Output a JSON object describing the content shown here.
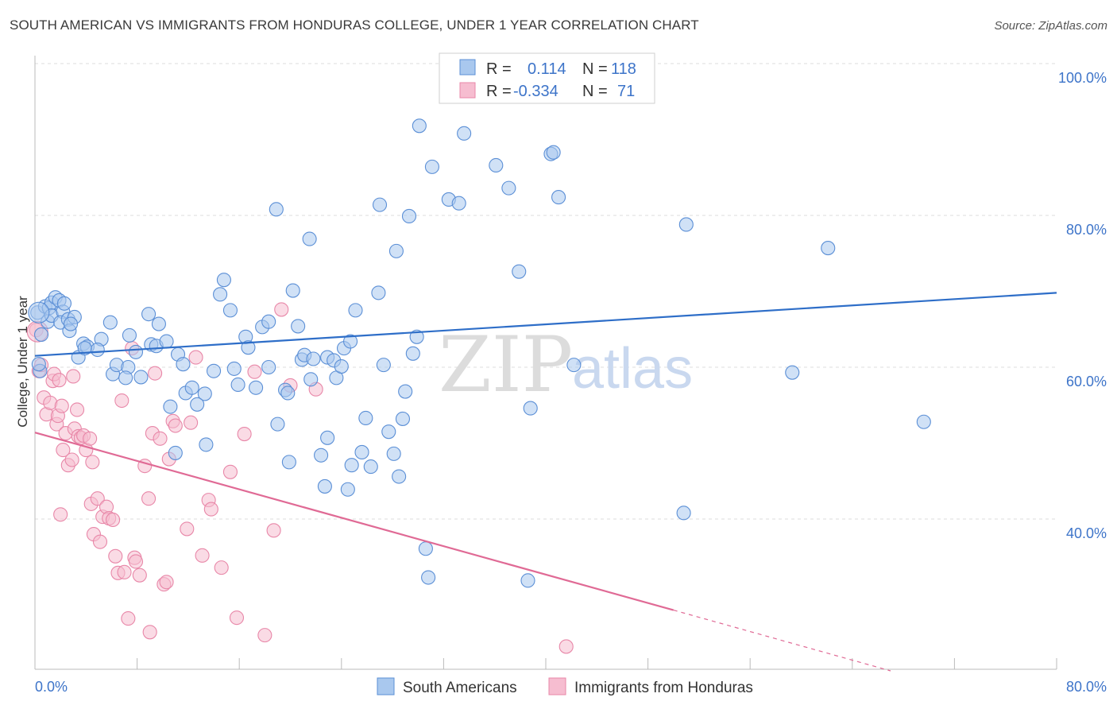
{
  "title": "SOUTH AMERICAN VS IMMIGRANTS FROM HONDURAS COLLEGE, UNDER 1 YEAR CORRELATION CHART",
  "source": "Source: ZipAtlas.com",
  "watermark": {
    "zip": "ZIP",
    "atlas": "atlas"
  },
  "colors": {
    "blue_fill": "#a9c8ee",
    "blue_stroke": "#5b8fd6",
    "blue_line": "#2e6ec8",
    "pink_fill": "#f6bdd0",
    "pink_stroke": "#e887a8",
    "pink_line": "#e06a95",
    "axis_text": "#3d74c9",
    "grid": "#dddddd"
  },
  "legend": {
    "rows": [
      {
        "r_label": "R =",
        "r_value": "0.114",
        "n_label": "N =",
        "n_value": "118"
      },
      {
        "r_label": "R =",
        "r_value": "-0.334",
        "n_label": "N =",
        "n_value": "71"
      }
    ]
  },
  "bottom_legend": [
    "South Americans",
    "Immigrants from Honduras"
  ],
  "chart_data": {
    "type": "scatter",
    "title": "SOUTH AMERICAN VS IMMIGRANTS FROM HONDURAS COLLEGE, UNDER 1 YEAR CORRELATION CHART",
    "xlabel": "",
    "ylabel": "College, Under 1 year",
    "x_tick_labels": [
      "0.0%",
      "80.0%"
    ],
    "y_tick_labels": [
      "100.0%",
      "80.0%",
      "60.0%",
      "40.0%"
    ],
    "xlim": [
      0,
      80
    ],
    "ylim": [
      20,
      102
    ],
    "grid": true,
    "legend_placement": "top-center",
    "series": [
      {
        "name": "South Americans",
        "r": 0.114,
        "n": 118,
        "trend": {
          "x0": 0,
          "y0": 61.5,
          "x1": 80,
          "y1": 69.8
        },
        "points": [
          [
            0.2,
            67.2
          ],
          [
            0.5,
            64.3
          ],
          [
            0.4,
            59.5
          ],
          [
            0.8,
            68.0
          ],
          [
            1.1,
            67.8
          ],
          [
            1.3,
            68.5
          ],
          [
            1.6,
            69.2
          ],
          [
            1.9,
            68.8
          ],
          [
            1.0,
            66.0
          ],
          [
            1.3,
            66.8
          ],
          [
            2.2,
            67.3
          ],
          [
            2.0,
            65.9
          ],
          [
            2.3,
            68.4
          ],
          [
            2.6,
            66.3
          ],
          [
            3.1,
            66.6
          ],
          [
            2.7,
            64.8
          ],
          [
            3.4,
            61.3
          ],
          [
            3.8,
            63.1
          ],
          [
            4.1,
            62.7
          ],
          [
            5.2,
            63.7
          ],
          [
            4.9,
            62.3
          ],
          [
            3.9,
            62.5
          ],
          [
            5.9,
            65.9
          ],
          [
            6.1,
            59.1
          ],
          [
            6.4,
            60.3
          ],
          [
            7.3,
            60.0
          ],
          [
            7.1,
            58.6
          ],
          [
            7.4,
            64.2
          ],
          [
            8.3,
            58.7
          ],
          [
            9.1,
            63.0
          ],
          [
            9.5,
            62.8
          ],
          [
            8.9,
            67.0
          ],
          [
            9.7,
            65.7
          ],
          [
            10.3,
            63.4
          ],
          [
            11.2,
            61.7
          ],
          [
            11.6,
            60.4
          ],
          [
            10.6,
            54.8
          ],
          [
            11.8,
            56.6
          ],
          [
            13.3,
            56.5
          ],
          [
            12.7,
            55.1
          ],
          [
            12.3,
            57.3
          ],
          [
            11.0,
            48.7
          ],
          [
            13.4,
            49.8
          ],
          [
            14.0,
            59.5
          ],
          [
            14.5,
            69.6
          ],
          [
            14.8,
            71.5
          ],
          [
            15.3,
            67.5
          ],
          [
            15.6,
            59.8
          ],
          [
            15.9,
            57.7
          ],
          [
            16.5,
            64.0
          ],
          [
            16.7,
            62.6
          ],
          [
            17.3,
            57.3
          ],
          [
            17.8,
            65.3
          ],
          [
            18.3,
            60.0
          ],
          [
            18.3,
            66.0
          ],
          [
            18.9,
            80.8
          ],
          [
            19.0,
            52.5
          ],
          [
            19.6,
            57.0
          ],
          [
            19.8,
            56.6
          ],
          [
            19.9,
            47.5
          ],
          [
            20.2,
            70.1
          ],
          [
            20.6,
            65.4
          ],
          [
            20.9,
            61.0
          ],
          [
            21.1,
            61.6
          ],
          [
            21.5,
            76.9
          ],
          [
            21.6,
            58.4
          ],
          [
            21.8,
            61.1
          ],
          [
            22.4,
            48.4
          ],
          [
            22.7,
            44.3
          ],
          [
            22.9,
            50.7
          ],
          [
            22.9,
            61.3
          ],
          [
            23.4,
            60.9
          ],
          [
            23.6,
            58.6
          ],
          [
            24.0,
            60.1
          ],
          [
            24.2,
            62.5
          ],
          [
            24.5,
            43.9
          ],
          [
            24.7,
            63.4
          ],
          [
            24.8,
            47.1
          ],
          [
            25.1,
            67.5
          ],
          [
            25.6,
            48.8
          ],
          [
            25.9,
            53.3
          ],
          [
            26.3,
            46.9
          ],
          [
            26.9,
            69.8
          ],
          [
            27.0,
            81.4
          ],
          [
            27.3,
            60.3
          ],
          [
            27.7,
            51.5
          ],
          [
            28.1,
            48.6
          ],
          [
            28.3,
            75.3
          ],
          [
            28.5,
            45.6
          ],
          [
            28.8,
            53.2
          ],
          [
            29.0,
            56.8
          ],
          [
            29.3,
            79.9
          ],
          [
            29.6,
            61.8
          ],
          [
            29.9,
            64.0
          ],
          [
            30.1,
            91.8
          ],
          [
            30.6,
            36.1
          ],
          [
            30.8,
            32.3
          ],
          [
            31.1,
            86.4
          ],
          [
            32.4,
            82.1
          ],
          [
            33.2,
            81.6
          ],
          [
            33.6,
            90.8
          ],
          [
            36.1,
            86.6
          ],
          [
            37.1,
            83.6
          ],
          [
            37.9,
            72.6
          ],
          [
            38.6,
            31.9
          ],
          [
            38.8,
            54.6
          ],
          [
            40.4,
            88.1
          ],
          [
            40.6,
            88.3
          ],
          [
            41.0,
            82.4
          ],
          [
            42.2,
            60.3
          ],
          [
            51.0,
            78.8
          ],
          [
            50.8,
            40.8
          ],
          [
            59.3,
            59.3
          ],
          [
            62.1,
            75.7
          ],
          [
            69.6,
            52.8
          ],
          [
            0.3,
            60.4
          ],
          [
            2.8,
            65.7
          ],
          [
            7.9,
            62.0
          ]
        ]
      },
      {
        "name": "Immigrants from Honduras",
        "r": -0.334,
        "n": 71,
        "trend": {
          "x0": 0,
          "y0": 51.4,
          "x1": 50,
          "y1": 28.0,
          "dashed_to_x": 67,
          "dashed_to_y": 20.0
        },
        "points": [
          [
            0.1,
            64.9
          ],
          [
            0.3,
            59.5
          ],
          [
            0.5,
            60.3
          ],
          [
            0.7,
            56.0
          ],
          [
            0.9,
            53.8
          ],
          [
            1.2,
            55.3
          ],
          [
            1.4,
            58.2
          ],
          [
            1.7,
            52.5
          ],
          [
            1.8,
            53.6
          ],
          [
            1.5,
            59.1
          ],
          [
            1.9,
            58.3
          ],
          [
            2.1,
            54.9
          ],
          [
            2.2,
            49.1
          ],
          [
            2.4,
            51.3
          ],
          [
            2.6,
            47.1
          ],
          [
            2.9,
            47.8
          ],
          [
            3.1,
            51.9
          ],
          [
            3.3,
            54.4
          ],
          [
            3.4,
            50.9
          ],
          [
            3.6,
            50.7
          ],
          [
            3.8,
            51.0
          ],
          [
            4.0,
            49.1
          ],
          [
            4.3,
            50.6
          ],
          [
            4.4,
            42.0
          ],
          [
            4.6,
            38.0
          ],
          [
            4.9,
            42.7
          ],
          [
            5.1,
            37.0
          ],
          [
            5.3,
            40.3
          ],
          [
            5.6,
            41.6
          ],
          [
            5.8,
            40.1
          ],
          [
            6.1,
            39.9
          ],
          [
            6.3,
            35.1
          ],
          [
            6.5,
            32.9
          ],
          [
            7.0,
            33.0
          ],
          [
            7.3,
            26.9
          ],
          [
            7.6,
            62.5
          ],
          [
            7.8,
            34.9
          ],
          [
            7.9,
            34.4
          ],
          [
            8.2,
            32.6
          ],
          [
            8.6,
            47.0
          ],
          [
            8.9,
            42.7
          ],
          [
            9.0,
            25.1
          ],
          [
            9.2,
            51.3
          ],
          [
            9.4,
            59.2
          ],
          [
            9.8,
            50.6
          ],
          [
            10.1,
            31.4
          ],
          [
            10.3,
            31.7
          ],
          [
            10.5,
            47.9
          ],
          [
            10.8,
            52.9
          ],
          [
            11.0,
            52.3
          ],
          [
            11.9,
            38.7
          ],
          [
            12.2,
            52.7
          ],
          [
            12.6,
            61.3
          ],
          [
            13.1,
            35.2
          ],
          [
            13.6,
            42.5
          ],
          [
            13.8,
            41.3
          ],
          [
            14.6,
            33.6
          ],
          [
            15.3,
            46.2
          ],
          [
            15.8,
            27.0
          ],
          [
            16.4,
            51.2
          ],
          [
            17.2,
            59.4
          ],
          [
            18.0,
            24.7
          ],
          [
            18.7,
            38.5
          ],
          [
            19.3,
            67.6
          ],
          [
            20.0,
            57.6
          ],
          [
            22.0,
            57.1
          ],
          [
            41.6,
            23.2
          ],
          [
            6.8,
            55.6
          ],
          [
            4.5,
            47.5
          ],
          [
            2.0,
            40.6
          ],
          [
            3.0,
            58.8
          ]
        ]
      }
    ]
  }
}
